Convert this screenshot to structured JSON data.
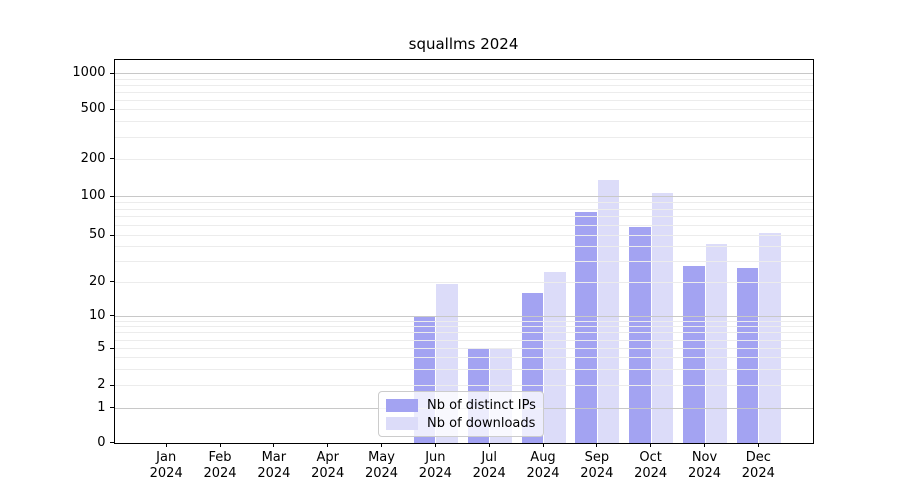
{
  "chart_data": {
    "type": "bar",
    "title": "squallms 2024",
    "categories": [
      [
        "Jan",
        "2024"
      ],
      [
        "Feb",
        "2024"
      ],
      [
        "Mar",
        "2024"
      ],
      [
        "Apr",
        "2024"
      ],
      [
        "May",
        "2024"
      ],
      [
        "Jun",
        "2024"
      ],
      [
        "Jul",
        "2024"
      ],
      [
        "Aug",
        "2024"
      ],
      [
        "Sep",
        "2024"
      ],
      [
        "Oct",
        "2024"
      ],
      [
        "Nov",
        "2024"
      ],
      [
        "Dec",
        "2024"
      ]
    ],
    "series": [
      {
        "name": "Nb of distinct IPs",
        "color": "#a3a3f2",
        "values": [
          0,
          0,
          0,
          0,
          0,
          10,
          5,
          16,
          75,
          58,
          27,
          26
        ]
      },
      {
        "name": "Nb of downloads",
        "color": "#dcdcf9",
        "values": [
          0,
          0,
          0,
          0,
          0,
          19,
          5,
          24,
          135,
          106,
          42,
          52
        ]
      }
    ],
    "yscale": "symlog",
    "yticks": [
      0,
      1,
      2,
      5,
      10,
      20,
      50,
      100,
      200,
      500,
      1000
    ],
    "ylim": [
      0,
      1300
    ],
    "xlabel": "",
    "ylabel": "",
    "grid": true,
    "legend_position": "lower center",
    "colors": {
      "major_grid": "#c8c8c8",
      "minor_grid": "#ececec",
      "axis": "#000000",
      "background": "#ffffff"
    }
  }
}
